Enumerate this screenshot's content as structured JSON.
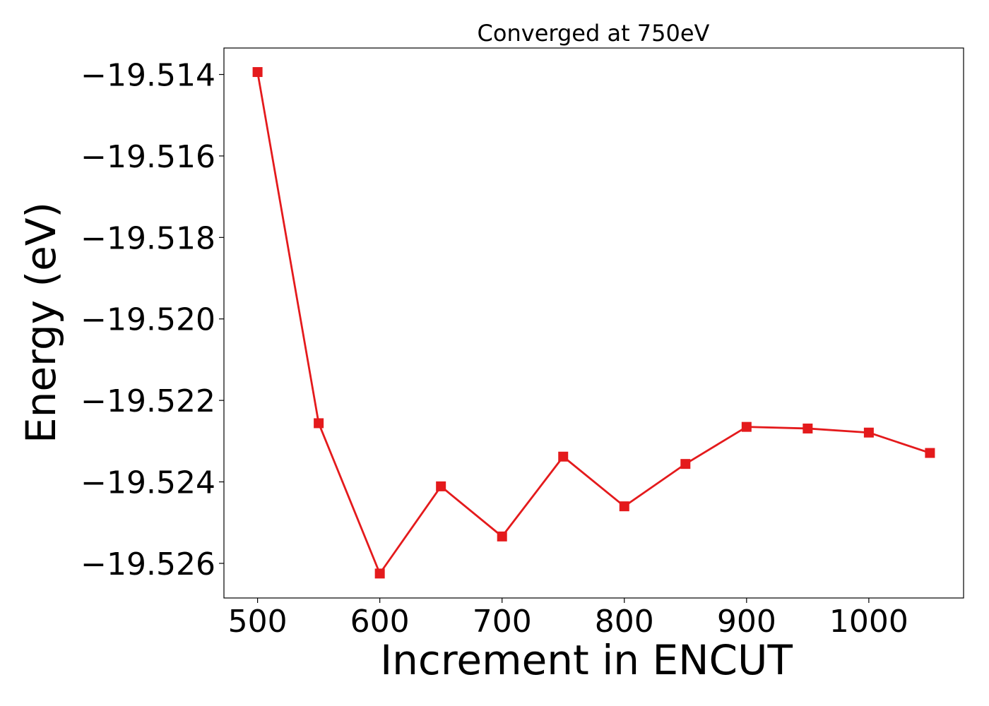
{
  "chart_data": {
    "type": "line",
    "title": "Converged at 750eV",
    "xlabel": "Increment in ENCUT",
    "ylabel": "Energy (eV)",
    "xlim": [
      472.5,
      1077.5
    ],
    "ylim": [
      -19.52685,
      -19.51335
    ],
    "xticks": [
      500,
      600,
      700,
      800,
      900,
      1000
    ],
    "xtick_labels": [
      "500",
      "600",
      "700",
      "800",
      "900",
      "1000"
    ],
    "yticks": [
      -19.514,
      -19.516,
      -19.518,
      -19.52,
      -19.522,
      -19.524,
      -19.526
    ],
    "ytick_labels": [
      "−19.514",
      "−19.516",
      "−19.518",
      "−19.520",
      "−19.522",
      "−19.524",
      "−19.526"
    ],
    "grid": false,
    "legend": "none",
    "series": [
      {
        "color": "#e41a1c",
        "marker": "square",
        "x": [
          500,
          550,
          600,
          650,
          700,
          750,
          800,
          850,
          900,
          950,
          1000,
          1050
        ],
        "y": [
          -19.51394,
          -19.52256,
          -19.52625,
          -19.52411,
          -19.52534,
          -19.52338,
          -19.5246,
          -19.52356,
          -19.52265,
          -19.52269,
          -19.52279,
          -19.52329
        ]
      }
    ]
  }
}
